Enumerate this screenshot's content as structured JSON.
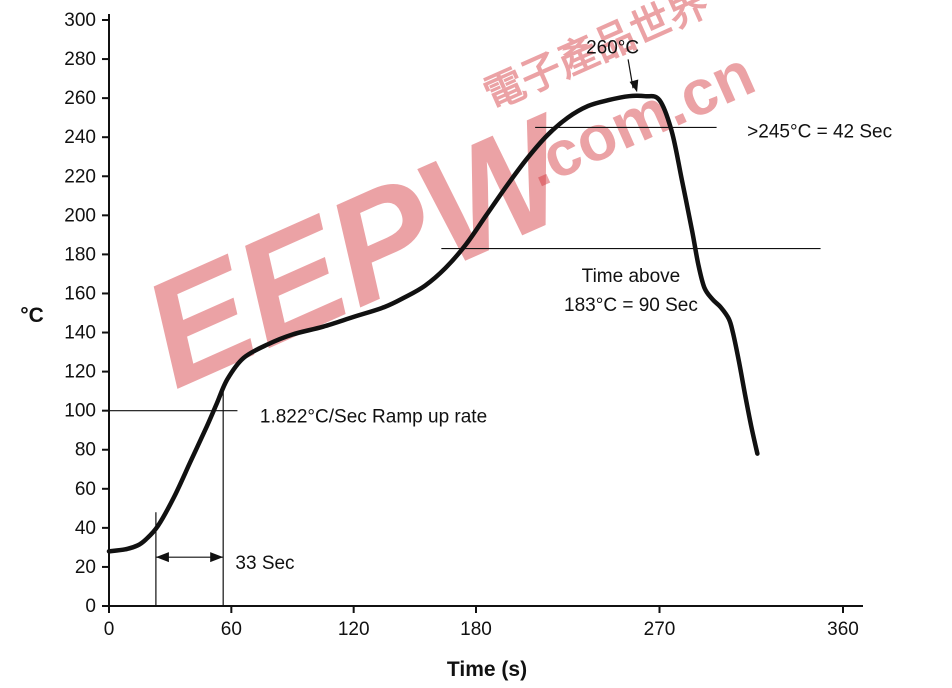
{
  "chart_data": {
    "type": "line",
    "title": "",
    "xlabel": "Time (s)",
    "ylabel": "°C",
    "xlim": [
      0,
      360
    ],
    "ylim": [
      0,
      300
    ],
    "x_ticks": [
      0,
      60,
      120,
      180,
      270,
      360
    ],
    "y_ticks": [
      0,
      20,
      40,
      60,
      80,
      100,
      120,
      140,
      160,
      180,
      200,
      220,
      240,
      260,
      280,
      300
    ],
    "grid": false,
    "series": [
      {
        "color": "#111111",
        "points": [
          [
            0,
            28
          ],
          [
            8,
            29
          ],
          [
            14,
            31
          ],
          [
            18,
            34
          ],
          [
            24,
            41
          ],
          [
            32,
            56
          ],
          [
            40,
            74
          ],
          [
            48,
            92
          ],
          [
            53,
            104
          ],
          [
            58,
            116
          ],
          [
            66,
            127
          ],
          [
            78,
            134
          ],
          [
            90,
            139
          ],
          [
            105,
            143
          ],
          [
            120,
            148
          ],
          [
            135,
            153
          ],
          [
            145,
            158
          ],
          [
            155,
            164
          ],
          [
            165,
            173
          ],
          [
            175,
            185
          ],
          [
            185,
            200
          ],
          [
            195,
            215
          ],
          [
            205,
            229
          ],
          [
            215,
            241
          ],
          [
            225,
            250
          ],
          [
            235,
            256
          ],
          [
            245,
            259
          ],
          [
            255,
            261
          ],
          [
            263,
            261
          ],
          [
            270,
            259
          ],
          [
            276,
            243
          ],
          [
            281,
            218
          ],
          [
            286,
            192
          ],
          [
            289,
            175
          ],
          [
            292,
            163
          ],
          [
            296,
            157
          ],
          [
            300,
            153
          ],
          [
            304,
            147
          ],
          [
            306,
            140
          ],
          [
            309,
            125
          ],
          [
            312,
            108
          ],
          [
            315,
            92
          ],
          [
            318,
            78
          ]
        ]
      }
    ],
    "reference_lines": {
      "y100": {
        "y": 100,
        "x_from": 0,
        "x_to": 63
      },
      "y183": {
        "y": 183,
        "x_from": 163,
        "x_to": 349
      },
      "y245": {
        "y": 245,
        "x_from": 209,
        "x_to": 298
      },
      "x_t1": {
        "x": 23,
        "y_from": 0,
        "y_to": 48
      },
      "x_t2": {
        "x": 56,
        "y_from": 0,
        "y_to": 111
      },
      "span_33": {
        "x_from": 23,
        "x_to": 56,
        "y": 25
      }
    },
    "annotations": [
      {
        "id": "peak",
        "text": "260°C",
        "x": 234,
        "y": 286,
        "anchor": "start",
        "arrow_to": [
          259,
          263
        ]
      },
      {
        "id": "above245",
        "text": ">245°C = 42 Sec",
        "x": 313,
        "y": 243,
        "anchor": "start"
      },
      {
        "id": "above183_l1",
        "text": "Time above",
        "x": 256,
        "y": 169,
        "anchor": "middle"
      },
      {
        "id": "above183_l2",
        "text": "183°C = 90 Sec",
        "x": 256,
        "y": 154,
        "anchor": "middle"
      },
      {
        "id": "ramp",
        "text": "1.822°C/Sec Ramp up rate",
        "x": 74,
        "y": 97,
        "anchor": "start"
      },
      {
        "id": "sec33",
        "text": "33 Sec",
        "x": 62,
        "y": 22,
        "anchor": "start"
      }
    ]
  },
  "watermark": {
    "logo_text": "EEPW",
    "domain_text": ".com.cn",
    "chinese_text": "電子產品世界",
    "color": "#d3333a"
  }
}
